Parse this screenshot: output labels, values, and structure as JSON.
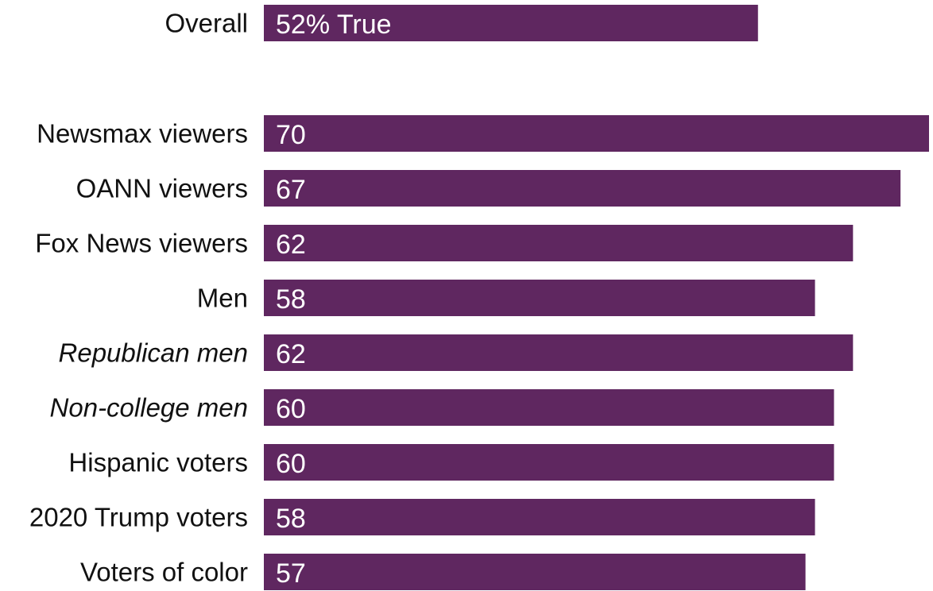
{
  "chart_data": {
    "type": "bar",
    "orientation": "horizontal",
    "bar_color": "#5f2760",
    "label_color": "#111111",
    "value_text_color": "#ffffff",
    "categories": [
      "Overall",
      "Newsmax viewers",
      "OANN viewers",
      "Fox News viewers",
      "Men",
      "Republican men",
      "Non-college men",
      "Hispanic voters",
      "2020 Trump voters",
      "Voters of color"
    ],
    "values": [
      52,
      70,
      67,
      62,
      58,
      62,
      60,
      60,
      58,
      57
    ],
    "value_labels": [
      "52% True",
      "70",
      "67",
      "62",
      "58",
      "62",
      "60",
      "60",
      "58",
      "57"
    ],
    "italic_categories": [
      "Republican men",
      "Non-college men"
    ],
    "xlim": [
      0,
      70
    ],
    "title": "",
    "xlabel": "",
    "ylabel": ""
  }
}
